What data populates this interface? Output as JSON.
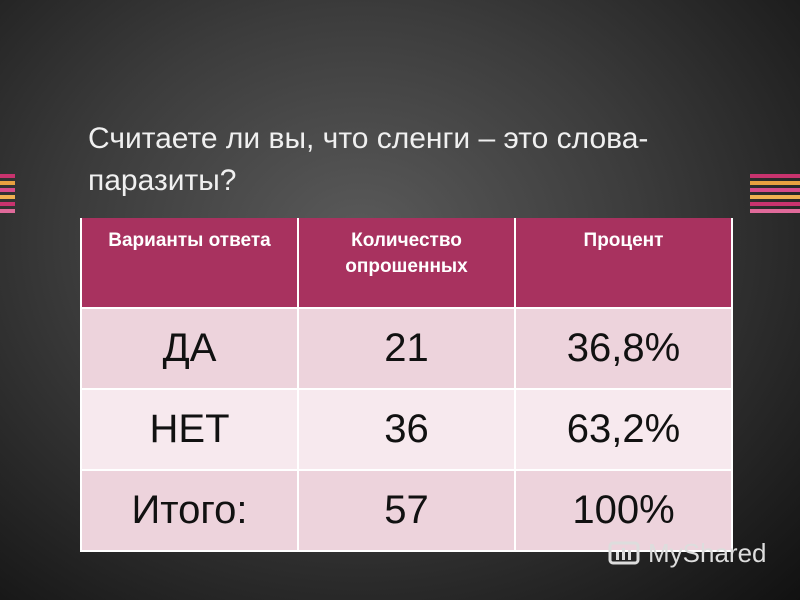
{
  "slide": {
    "title": "Считаете ли вы, что сленги – это слова-паразиты?",
    "table": {
      "header": [
        "Варианты ответа",
        "Количество опрошенных",
        "Процент"
      ],
      "rows": [
        [
          "ДА",
          "21",
          "36,8%"
        ],
        [
          "НЕТ",
          "36",
          "63,2%"
        ],
        [
          "Итого:",
          "57",
          "100%"
        ]
      ]
    },
    "watermark": "MyShared"
  }
}
